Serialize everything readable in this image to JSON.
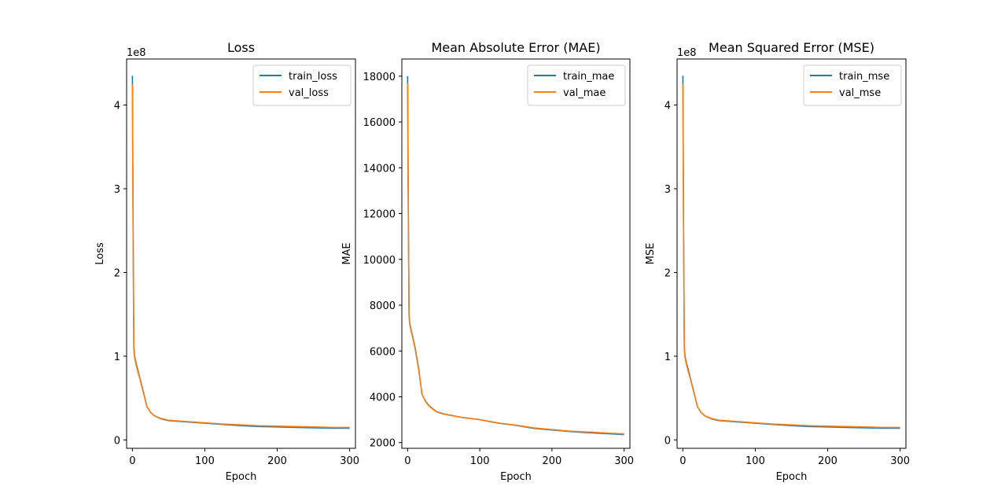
{
  "chart_data": [
    {
      "type": "line",
      "title": "Loss",
      "xlabel": "Epoch",
      "ylabel": "Loss",
      "offset_label": "1e8",
      "xlim": [
        -8,
        308
      ],
      "ylim": [
        -0.1,
        4.55
      ],
      "xticks": [
        0,
        100,
        200,
        300
      ],
      "xtick_labels": [
        "0",
        "100",
        "200",
        "300"
      ],
      "yticks": [
        0,
        1,
        2,
        3,
        4
      ],
      "ytick_labels": [
        "0",
        "1",
        "2",
        "3",
        "4"
      ],
      "legend_position": "top-right",
      "x": [
        0,
        1,
        2,
        3,
        5,
        8,
        10,
        15,
        20,
        25,
        30,
        40,
        50,
        75,
        100,
        125,
        150,
        175,
        200,
        225,
        250,
        275,
        300
      ],
      "series": [
        {
          "name": "train_loss",
          "color": "#1f77b4",
          "values": [
            4.35,
            2.5,
            1.1,
            1.0,
            0.92,
            0.82,
            0.75,
            0.58,
            0.4,
            0.33,
            0.29,
            0.25,
            0.23,
            0.215,
            0.2,
            0.185,
            0.17,
            0.16,
            0.155,
            0.15,
            0.145,
            0.14,
            0.14
          ]
        },
        {
          "name": "val_loss",
          "color": "#ff7f0e",
          "values": [
            4.25,
            2.4,
            1.08,
            0.98,
            0.9,
            0.8,
            0.74,
            0.57,
            0.4,
            0.33,
            0.29,
            0.255,
            0.235,
            0.22,
            0.205,
            0.19,
            0.18,
            0.17,
            0.165,
            0.16,
            0.155,
            0.15,
            0.15
          ]
        }
      ]
    },
    {
      "type": "line",
      "title": "Mean Absolute Error (MAE)",
      "xlabel": "Epoch",
      "ylabel": "MAE",
      "offset_label": "",
      "xlim": [
        -8,
        308
      ],
      "ylim": [
        1750,
        18750
      ],
      "xticks": [
        0,
        100,
        200,
        300
      ],
      "xtick_labels": [
        "0",
        "100",
        "200",
        "300"
      ],
      "yticks": [
        2000,
        4000,
        6000,
        8000,
        10000,
        12000,
        14000,
        16000,
        18000
      ],
      "ytick_labels": [
        "2000",
        "4000",
        "6000",
        "8000",
        "10000",
        "12000",
        "14000",
        "16000",
        "18000"
      ],
      "legend_position": "top-right",
      "x": [
        0,
        1,
        2,
        3,
        5,
        8,
        10,
        15,
        20,
        25,
        30,
        40,
        50,
        75,
        100,
        125,
        150,
        175,
        200,
        225,
        250,
        275,
        300
      ],
      "series": [
        {
          "name": "train_mae",
          "color": "#1f77b4",
          "values": [
            18000,
            12000,
            7600,
            7200,
            6900,
            6500,
            6200,
            5300,
            4100,
            3800,
            3600,
            3350,
            3250,
            3100,
            3000,
            2850,
            2750,
            2620,
            2550,
            2480,
            2430,
            2390,
            2350
          ]
        },
        {
          "name": "val_mae",
          "color": "#ff7f0e",
          "values": [
            17700,
            11800,
            7500,
            7150,
            6850,
            6450,
            6150,
            5250,
            4100,
            3780,
            3580,
            3340,
            3240,
            3100,
            3000,
            2860,
            2760,
            2640,
            2570,
            2500,
            2460,
            2420,
            2380
          ]
        }
      ]
    },
    {
      "type": "line",
      "title": "Mean Squared Error (MSE)",
      "xlabel": "Epoch",
      "ylabel": "MSE",
      "offset_label": "1e8",
      "xlim": [
        -8,
        308
      ],
      "ylim": [
        -0.1,
        4.55
      ],
      "xticks": [
        0,
        100,
        200,
        300
      ],
      "xtick_labels": [
        "0",
        "100",
        "200",
        "300"
      ],
      "yticks": [
        0,
        1,
        2,
        3,
        4
      ],
      "ytick_labels": [
        "0",
        "1",
        "2",
        "3",
        "4"
      ],
      "legend_position": "top-right",
      "x": [
        0,
        1,
        2,
        3,
        5,
        8,
        10,
        15,
        20,
        25,
        30,
        40,
        50,
        75,
        100,
        125,
        150,
        175,
        200,
        225,
        250,
        275,
        300
      ],
      "series": [
        {
          "name": "train_mse",
          "color": "#1f77b4",
          "values": [
            4.35,
            2.5,
            1.1,
            1.0,
            0.92,
            0.82,
            0.75,
            0.58,
            0.4,
            0.33,
            0.29,
            0.25,
            0.23,
            0.215,
            0.2,
            0.185,
            0.17,
            0.16,
            0.155,
            0.15,
            0.145,
            0.14,
            0.14
          ]
        },
        {
          "name": "val_mse",
          "color": "#ff7f0e",
          "values": [
            4.25,
            2.4,
            1.08,
            0.98,
            0.9,
            0.8,
            0.74,
            0.57,
            0.4,
            0.33,
            0.29,
            0.255,
            0.235,
            0.22,
            0.205,
            0.19,
            0.18,
            0.17,
            0.165,
            0.16,
            0.155,
            0.15,
            0.15
          ]
        }
      ]
    }
  ]
}
